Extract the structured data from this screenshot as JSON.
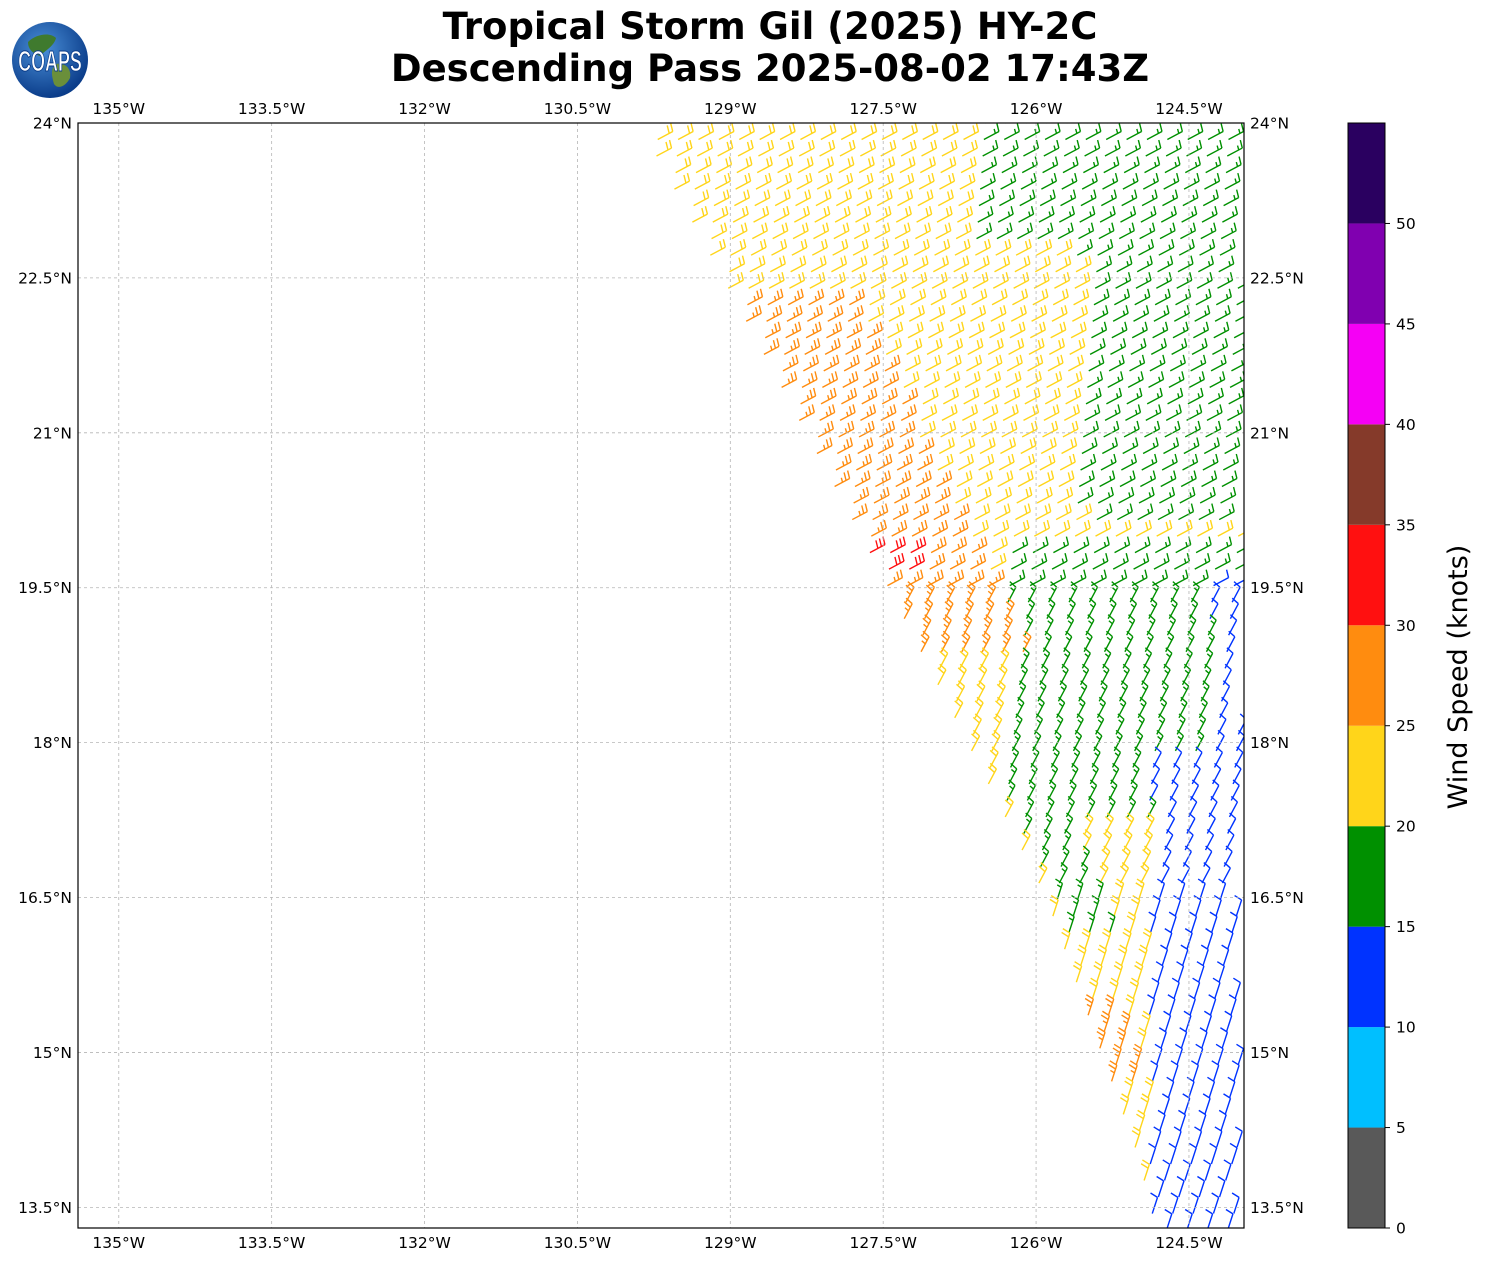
{
  "title": {
    "line1": "Tropical Storm Gil (2025) HY-2C",
    "line2": "Descending Pass 2025-08-02 17:43Z"
  },
  "logo": {
    "text": "COAPS",
    "icon": "globe-icon"
  },
  "map": {
    "lon_ticks": [
      "135°W",
      "133.5°W",
      "132°W",
      "130.5°W",
      "129°W",
      "127.5°W",
      "126°W",
      "124.5°W"
    ],
    "lon_values": [
      -135,
      -133.5,
      -132,
      -130.5,
      -129,
      -127.5,
      -126,
      -124.5
    ],
    "lat_ticks": [
      "24°N",
      "22.5°N",
      "21°N",
      "19.5°N",
      "18°N",
      "16.5°N",
      "15°N",
      "13.5°N"
    ],
    "lat_values": [
      24,
      22.5,
      21,
      19.5,
      18,
      16.5,
      15,
      13.5
    ],
    "extent": {
      "lon_min": -135.4,
      "lon_max": -123.96,
      "lat_min": 13.3,
      "lat_max": 24
    },
    "gridlines": true
  },
  "colorbar": {
    "label": "Wind Speed (knots)",
    "tick_labels": [
      "0",
      "5",
      "10",
      "15",
      "20",
      "25",
      "30",
      "35",
      "40",
      "45",
      "50"
    ],
    "bins": [
      {
        "min": 0,
        "max": 5,
        "color": "#595959"
      },
      {
        "min": 5,
        "max": 10,
        "color": "#00bfff"
      },
      {
        "min": 10,
        "max": 15,
        "color": "#0033ff"
      },
      {
        "min": 15,
        "max": 20,
        "color": "#009000"
      },
      {
        "min": 20,
        "max": 25,
        "color": "#ffd51a"
      },
      {
        "min": 25,
        "max": 30,
        "color": "#ff8c0f"
      },
      {
        "min": 30,
        "max": 35,
        "color": "#ff1010"
      },
      {
        "min": 35,
        "max": 40,
        "color": "#853a2a"
      },
      {
        "min": 40,
        "max": 45,
        "color": "#f500f5"
      },
      {
        "min": 45,
        "max": 50,
        "color": "#8000b0"
      },
      {
        "min": 50,
        "max": 55,
        "color": "#2a0060"
      }
    ]
  },
  "wind_swath": {
    "description_type": "wind-barbs",
    "swath_west_edge": [
      [
        -129.9,
        24.0
      ],
      [
        -128.8,
        22.0
      ],
      [
        -127.5,
        19.6
      ],
      [
        -125.9,
        16.5
      ],
      [
        -125.0,
        14.0
      ],
      [
        -124.8,
        13.2
      ]
    ],
    "regions": [
      {
        "speed_kt": 22,
        "color": "#ffd51a",
        "area": "west and central swath"
      },
      {
        "speed_kt": 17,
        "color": "#009000",
        "area": "east swath north of 18N and central south"
      },
      {
        "speed_kt": 27,
        "color": "#ff8c0f",
        "area": "western edge 18.8N-22.2N and near 15N"
      },
      {
        "speed_kt": 32,
        "color": "#ff1010",
        "area": "near 19.8N 127.5W"
      },
      {
        "speed_kt": 12,
        "color": "#0033ff",
        "area": "far east south of 19.6N"
      }
    ]
  }
}
